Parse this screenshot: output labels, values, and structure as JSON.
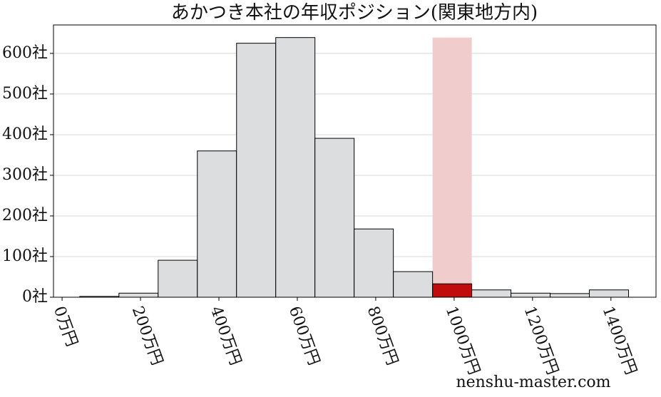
{
  "chart_data": {
    "type": "histogram",
    "title": "あかつき本社の年収ポジション(関東地方内)",
    "watermark": "nenshu-master.com",
    "bins": [
      45,
      145,
      245,
      345,
      445,
      545,
      645,
      745,
      845,
      945,
      1045,
      1145,
      1245,
      1345,
      1445
    ],
    "values": [
      2,
      10,
      91,
      360,
      625,
      639,
      391,
      168,
      63,
      33,
      18,
      10,
      9,
      18
    ],
    "colors": [
      "#dcdddf",
      "#dcdddf",
      "#dcdddf",
      "#dcdddf",
      "#dcdddf",
      "#dcdddf",
      "#dcdddf",
      "#dcdddf",
      "#dcdddf",
      "#c00c0c",
      "#dcdddf",
      "#dcdddf",
      "#dcdddf",
      "#dcdddf"
    ],
    "band": {
      "x": [
        945,
        1045
      ],
      "height": 639,
      "color": "#f0cccc"
    },
    "xlim": [
      -22,
      1515
    ],
    "ylim": [
      0,
      670
    ],
    "xticks": [
      {
        "value": 0,
        "label": "0万円"
      },
      {
        "value": 200,
        "label": "200万円"
      },
      {
        "value": 400,
        "label": "400万円"
      },
      {
        "value": 600,
        "label": "600万円"
      },
      {
        "value": 800,
        "label": "800万円"
      },
      {
        "value": 1000,
        "label": "1000万円"
      },
      {
        "value": 1200,
        "label": "1200万円"
      },
      {
        "value": 1400,
        "label": "1400万円"
      }
    ],
    "yticks": [
      {
        "value": 0,
        "label": "0社"
      },
      {
        "value": 100,
        "label": "100社"
      },
      {
        "value": 200,
        "label": "200社"
      },
      {
        "value": 300,
        "label": "300社"
      },
      {
        "value": 400,
        "label": "400社"
      },
      {
        "value": 500,
        "label": "500社"
      },
      {
        "value": 600,
        "label": "600社"
      }
    ],
    "grid": true
  }
}
